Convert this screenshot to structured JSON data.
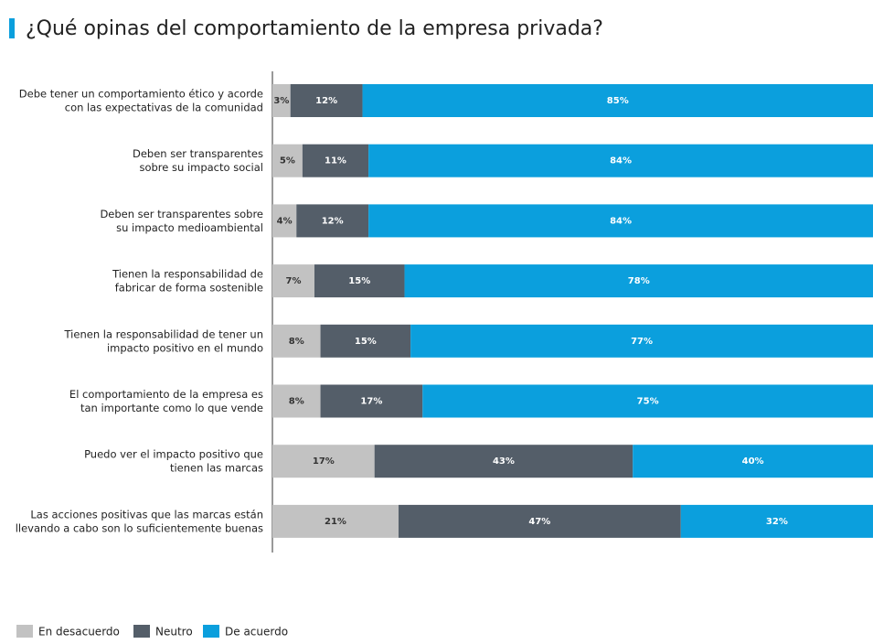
{
  "chart_data": {
    "type": "stacked_barh",
    "title": "¿Qué opinas del comportamiento de la empresa privada?",
    "categories": [
      [
        "Debe tener un comportamiento ético y acorde",
        "con las expectativas de la comunidad"
      ],
      [
        "Deben ser transparentes",
        "sobre su impacto social"
      ],
      [
        "Deben ser transparentes sobre",
        "su impacto medioambiental"
      ],
      [
        "Tienen la responsabilidad de",
        "fabricar de forma sostenible"
      ],
      [
        "Tienen la responsabilidad de tener un",
        "impacto positivo en el mundo"
      ],
      [
        "El comportamiento de la empresa es",
        "tan importante como lo que vende"
      ],
      [
        "Puedo ver el impacto positivo que",
        "tienen las marcas"
      ],
      [
        "Las acciones positivas que las marcas están",
        "llevando a cabo son lo suficientemente buenas"
      ]
    ],
    "xlim": [
      0,
      100
    ],
    "series": [
      {
        "name": "En desacuerdo",
        "color": "#c2c2c2",
        "label_color": "#333333",
        "values": [
          3,
          5,
          4,
          7,
          8,
          8,
          17,
          21
        ],
        "value_labels": [
          "3%",
          "5%",
          "4%",
          "7%",
          "8%",
          "8%",
          "17%",
          "21%"
        ]
      },
      {
        "name": "Neutro",
        "color": "#545e69",
        "label_color": "#ffffff",
        "values": [
          12,
          11,
          12,
          15,
          15,
          17,
          43,
          47
        ],
        "value_labels": [
          "12%",
          "11%",
          "12%",
          "15%",
          "15%",
          "17%",
          "43%",
          "47%"
        ]
      },
      {
        "name": "De acuerdo",
        "color": "#0b9fdd",
        "label_color": "#ffffff",
        "values": [
          85,
          84,
          84,
          78,
          77,
          75,
          40,
          32
        ],
        "value_labels": [
          "85%",
          "84%",
          "84%",
          "78%",
          "77%",
          "75%",
          "40%",
          "32%"
        ]
      }
    ],
    "legend": "bottom-left"
  }
}
